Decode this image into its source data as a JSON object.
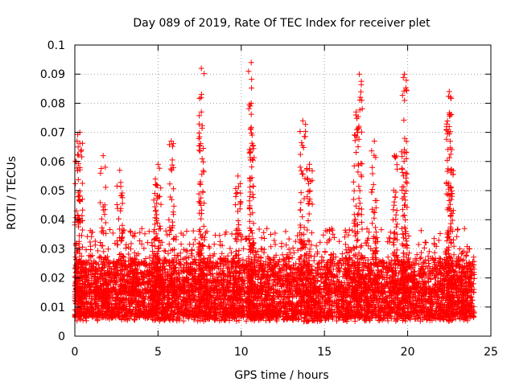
{
  "chart_data": {
    "type": "scatter",
    "title": "Day 089 of 2019, Rate Of TEC Index for receiver plet",
    "xlabel": "GPS time / hours",
    "ylabel": "ROTI / TECUs",
    "xlim": [
      0,
      25
    ],
    "ylim": [
      0,
      0.1
    ],
    "x_ticks": [
      0,
      5,
      10,
      15,
      20,
      25
    ],
    "y_ticks": [
      0,
      0.01,
      0.02,
      0.03,
      0.04,
      0.05,
      0.06,
      0.07,
      0.08,
      0.09,
      0.1
    ],
    "x_tick_labels": [
      "0",
      "5",
      "10",
      "15",
      "20",
      "25"
    ],
    "y_tick_labels": [
      "0",
      "0.01",
      "0.02",
      "0.03",
      "0.04",
      "0.05",
      "0.06",
      "0.07",
      "0.08",
      "0.09",
      "0.1"
    ],
    "grid": true,
    "marker": "+",
    "color": "#ff0000",
    "data_x_range": [
      0,
      24
    ],
    "baseline_band": [
      0.005,
      0.025
    ],
    "peaks": [
      {
        "x": 0.1,
        "y": 0.043
      },
      {
        "x": 0.2,
        "y": 0.065
      },
      {
        "x": 0.3,
        "y": 0.07
      },
      {
        "x": 1.7,
        "y": 0.062
      },
      {
        "x": 2.7,
        "y": 0.057
      },
      {
        "x": 4.8,
        "y": 0.049
      },
      {
        "x": 5.0,
        "y": 0.059
      },
      {
        "x": 5.8,
        "y": 0.067
      },
      {
        "x": 7.6,
        "y": 0.092
      },
      {
        "x": 7.6,
        "y": 0.077
      },
      {
        "x": 9.8,
        "y": 0.055
      },
      {
        "x": 10.6,
        "y": 0.094
      },
      {
        "x": 10.6,
        "y": 0.08
      },
      {
        "x": 13.7,
        "y": 0.074
      },
      {
        "x": 14.1,
        "y": 0.059
      },
      {
        "x": 16.9,
        "y": 0.077
      },
      {
        "x": 17.1,
        "y": 0.09
      },
      {
        "x": 18.0,
        "y": 0.067
      },
      {
        "x": 19.2,
        "y": 0.062
      },
      {
        "x": 19.8,
        "y": 0.09
      },
      {
        "x": 19.8,
        "y": 0.064
      },
      {
        "x": 22.5,
        "y": 0.084
      },
      {
        "x": 22.5,
        "y": 0.072
      },
      {
        "x": 22.6,
        "y": 0.057
      }
    ]
  }
}
